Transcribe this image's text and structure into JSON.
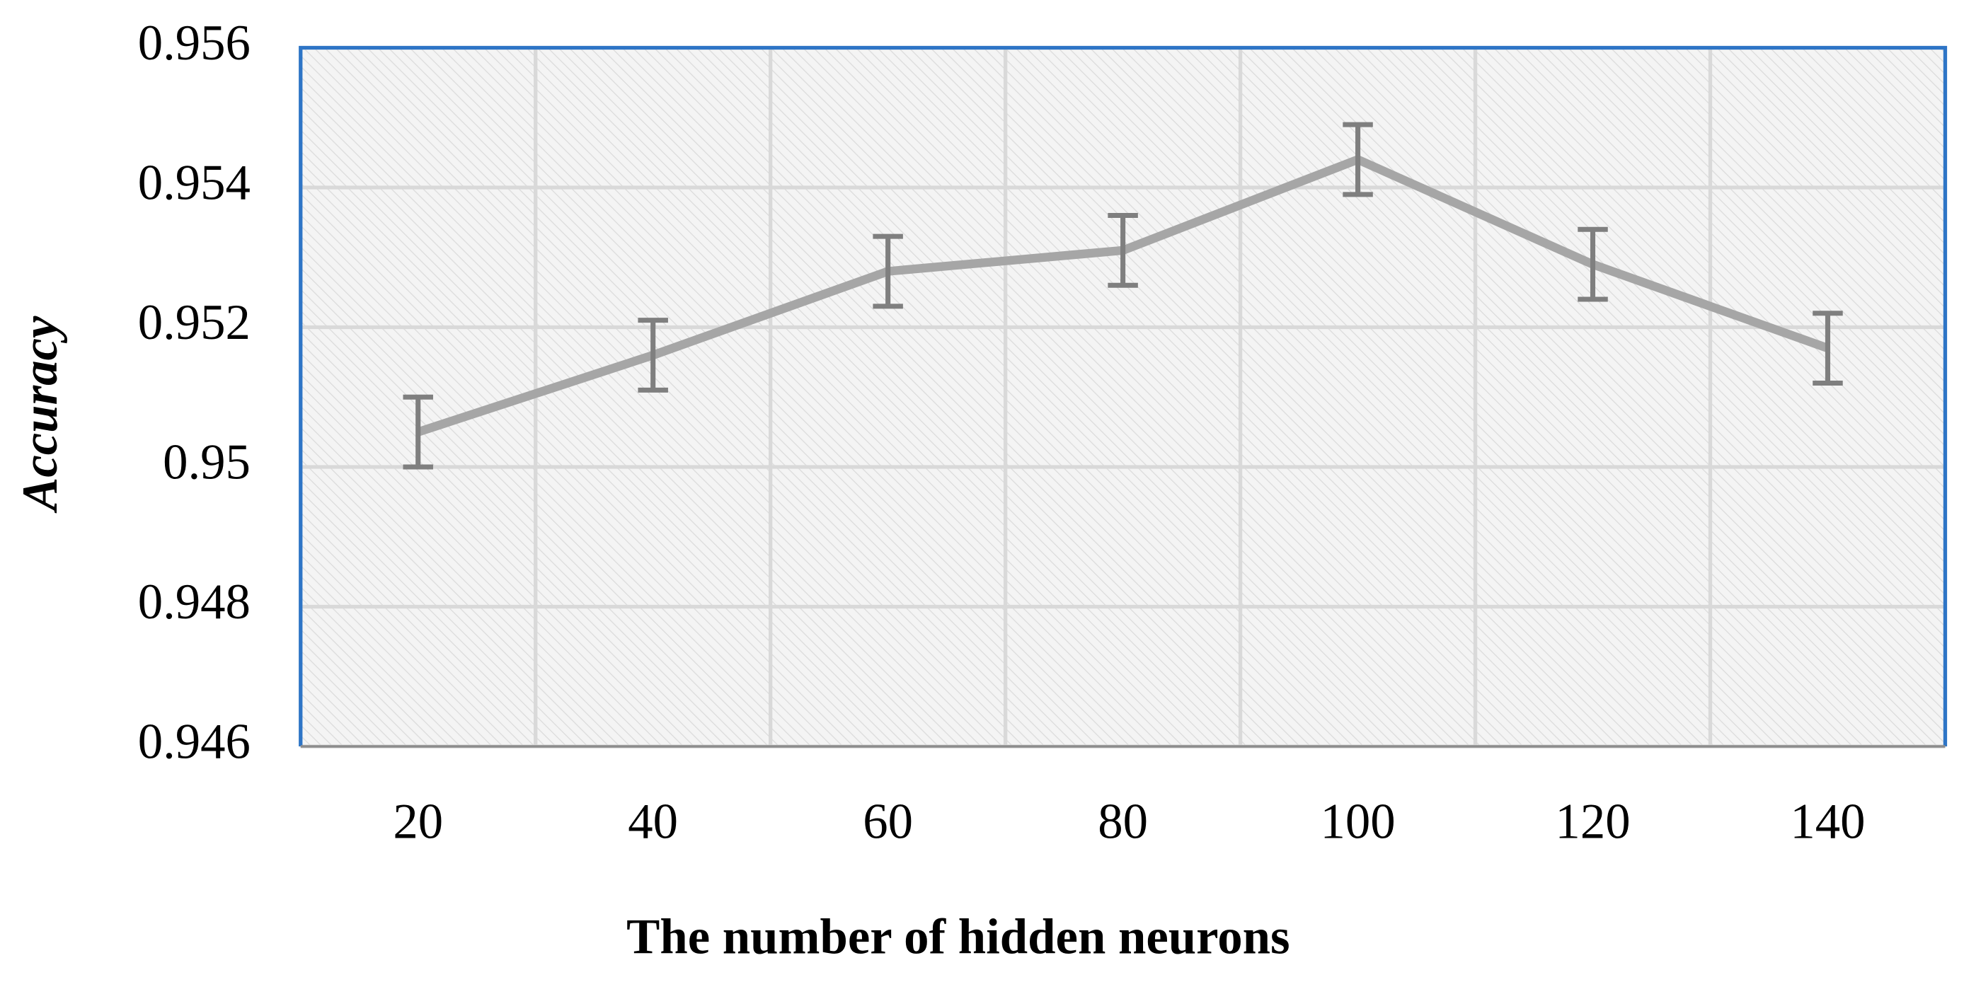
{
  "chart_data": {
    "type": "line",
    "x_label": "The number of hidden neurons",
    "y_label": "Accuracy",
    "categories": [
      "20",
      "40",
      "60",
      "80",
      "100",
      "120",
      "140"
    ],
    "values": [
      0.9505,
      0.9516,
      0.9528,
      0.9531,
      0.9544,
      0.9529,
      0.9517
    ],
    "errors": [
      0.0005,
      0.0005,
      0.0005,
      0.0005,
      0.0005,
      0.0005,
      0.0005
    ],
    "color": "#a6a6a6",
    "error_color": "#7f7f7f",
    "ylim": [
      0.946,
      0.956
    ],
    "yticks": [
      0.946,
      0.948,
      0.95,
      0.952,
      0.954,
      0.956
    ],
    "grid": true
  }
}
